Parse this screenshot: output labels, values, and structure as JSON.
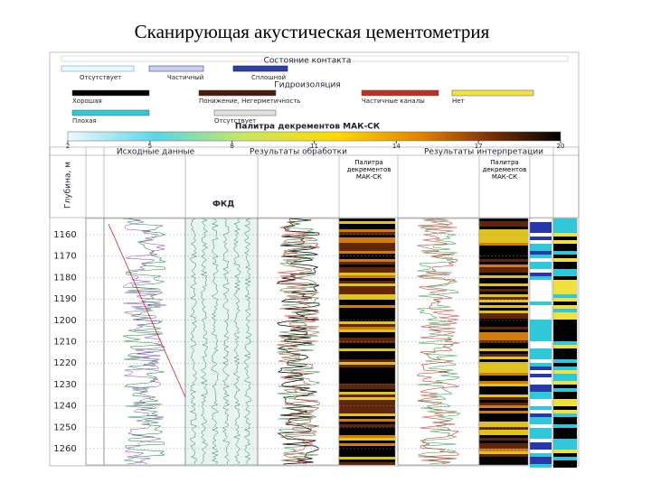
{
  "title": "Сканирующая акустическая цементометрия",
  "legend": {
    "contact": {
      "title": "Состояние контакта",
      "items": [
        "Отсутствует",
        "Частичный",
        "Сплошной"
      ]
    },
    "isolation": {
      "title": "Гидроизоляция",
      "items": [
        "Хорошая",
        "Понижение, Негерметичность",
        "Частичные каналы",
        "Нет",
        "Плохая",
        "Отсутствует"
      ]
    },
    "palette": {
      "title": "Палитра декрементов МАК-СК",
      "ticks": [
        2,
        5,
        8,
        11,
        14,
        17,
        20
      ]
    }
  },
  "tracks": {
    "headers": [
      "Исходные данные",
      "Результаты обработки",
      "Результаты интерпретации"
    ],
    "depth_label": "Глубина, м",
    "palette_label": "Палитра декрементов МАК-СК",
    "fkd": "ФКД"
  },
  "depths": [
    1160,
    1170,
    1180,
    1190,
    1200,
    1210,
    1220,
    1230,
    1240,
    1250,
    1260
  ]
}
